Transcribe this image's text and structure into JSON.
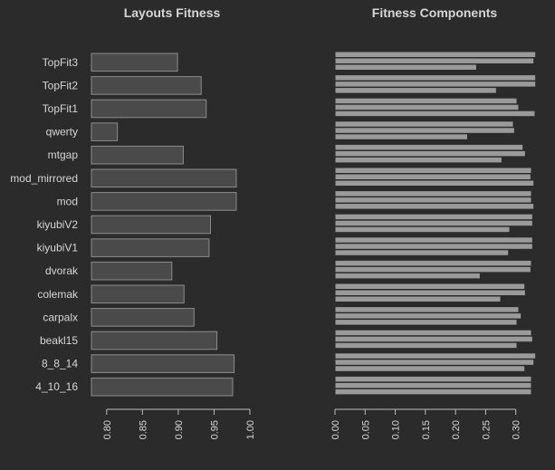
{
  "chart_data": [
    {
      "type": "bar",
      "orientation": "horizontal",
      "title": "Layouts Fitness",
      "categories": [
        "TopFit3",
        "TopFit2",
        "TopFit1",
        "qwerty",
        "mtgap",
        "mod_mirrored",
        "mod",
        "kiyubiV2",
        "kiyubiV1",
        "dvorak",
        "colemak",
        "carpalx",
        "beakl15",
        "8_8_14",
        "4_10_16"
      ],
      "values": [
        0.899,
        0.932,
        0.939,
        0.815,
        0.907,
        0.981,
        0.981,
        0.945,
        0.943,
        0.891,
        0.908,
        0.922,
        0.954,
        0.978,
        0.976
      ],
      "xlim": [
        0.775,
        1.0
      ],
      "xticks": [
        "0.80",
        "0.85",
        "0.90",
        "0.95",
        "1.00"
      ],
      "xtick_values": [
        0.8,
        0.85,
        0.9,
        0.95,
        1.0
      ],
      "bar_color": "#4a4a4a",
      "edge_color": "#8c8c8c"
    },
    {
      "type": "bar",
      "orientation": "horizontal",
      "title": "Fitness Components",
      "categories": [
        "TopFit3",
        "TopFit2",
        "TopFit1",
        "qwerty",
        "mtgap",
        "mod_mirrored",
        "mod",
        "kiyubiV2",
        "kiyubiV1",
        "dvorak",
        "colemak",
        "carpalx",
        "beakl15",
        "8_8_14",
        "4_10_16"
      ],
      "series": [
        {
          "values": [
            0.333,
            0.333,
            0.302,
            0.296,
            0.312,
            0.326,
            0.326,
            0.328,
            0.328,
            0.326,
            0.315,
            0.305,
            0.326,
            0.333,
            0.326
          ]
        },
        {
          "values": [
            0.33,
            0.333,
            0.305,
            0.298,
            0.316,
            0.325,
            0.326,
            0.328,
            0.328,
            0.325,
            0.316,
            0.309,
            0.328,
            0.33,
            0.326
          ]
        },
        {
          "values": [
            0.235,
            0.268,
            0.332,
            0.22,
            0.277,
            0.33,
            0.33,
            0.29,
            0.288,
            0.241,
            0.275,
            0.302,
            0.302,
            0.315,
            0.326
          ]
        }
      ],
      "xlim": [
        0.0,
        0.335
      ],
      "xticks": [
        "0.00",
        "0.05",
        "0.10",
        "0.15",
        "0.20",
        "0.25",
        "0.30"
      ],
      "xtick_values": [
        0.0,
        0.05,
        0.1,
        0.15,
        0.2,
        0.25,
        0.3
      ],
      "bar_color": "#9a9a9a",
      "edge_color": "#2b2b2b"
    }
  ]
}
